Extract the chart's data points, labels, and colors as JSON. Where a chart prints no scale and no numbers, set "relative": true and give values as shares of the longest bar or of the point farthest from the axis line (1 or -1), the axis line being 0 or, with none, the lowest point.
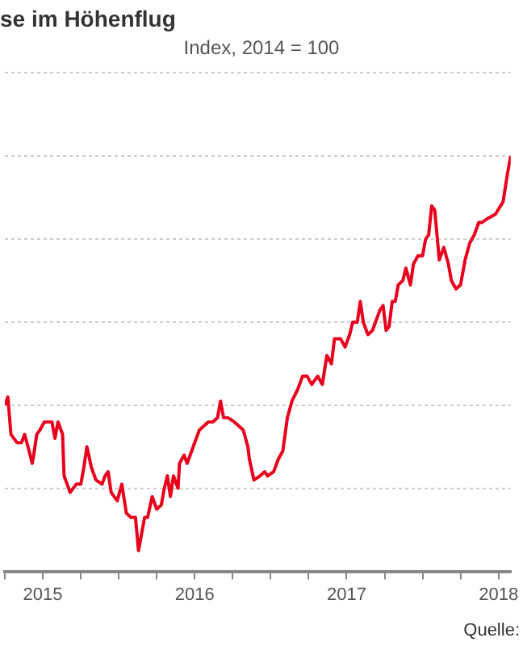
{
  "chart_data": {
    "type": "line",
    "title": "se im Höhenflug",
    "subtitle": "Index, 2014 = 100",
    "relative": true,
    "grid": "y",
    "legend": false,
    "marker": "none",
    "line_style": "solid",
    "annotations": [
      "Quelle:"
    ],
    "xlim": [
      2014.75,
      2018.08
    ],
    "xticks": [
      {
        "value": 2014.75,
        "label": null
      },
      2015,
      {
        "value": 2015.25,
        "label": null
      },
      {
        "value": 2015.5,
        "label": null
      },
      {
        "value": 2015.75,
        "label": null
      },
      2016,
      {
        "value": 2016.25,
        "label": null
      },
      {
        "value": 2016.5,
        "label": null
      },
      {
        "value": 2016.75,
        "label": null
      },
      2017,
      {
        "value": 2017.25,
        "label": null
      },
      {
        "value": 2017.5,
        "label": null
      },
      {
        "value": 2017.75,
        "label": null
      },
      2018
    ],
    "series": [
      {
        "color": "#e8001c",
        "x": [
          2014.75,
          2014.77,
          2014.79,
          2014.83,
          2014.86,
          2014.88,
          2014.91,
          2014.93,
          2014.94,
          2014.96,
          2014.98,
          2015.01,
          2015.04,
          2015.06,
          2015.08,
          2015.1,
          2015.13,
          2015.14,
          2015.18,
          2015.22,
          2015.25,
          2015.27,
          2015.29,
          2015.32,
          2015.35,
          2015.39,
          2015.41,
          2015.43,
          2015.45,
          2015.49,
          2015.52,
          2015.55,
          2015.58,
          2015.61,
          2015.63,
          2015.65,
          2015.67,
          2015.69,
          2015.72,
          2015.75,
          2015.78,
          2015.8,
          2015.82,
          2015.84,
          2015.86,
          2015.89,
          2015.9,
          2015.93,
          2015.95,
          2015.97,
          2015.99,
          2016.03,
          2016.06,
          2016.09,
          2016.12,
          2016.15,
          2016.17,
          2016.19,
          2016.22,
          2016.26,
          2016.29,
          2016.32,
          2016.35,
          2016.36,
          2016.39,
          2016.43,
          2016.46,
          2016.48,
          2016.52,
          2016.55,
          2016.58,
          2016.61,
          2016.64,
          2016.68,
          2016.71,
          2016.74,
          2016.77,
          2016.81,
          2016.84,
          2016.87,
          2016.9,
          2016.92,
          2016.96,
          2016.99,
          2017.02,
          2017.04,
          2017.07,
          2017.09,
          2017.11,
          2017.14,
          2017.17,
          2017.22,
          2017.24,
          2017.26,
          2017.28,
          2017.3,
          2017.32,
          2017.34,
          2017.37,
          2017.39,
          2017.42,
          2017.44,
          2017.47,
          2017.5,
          2017.52,
          2017.54,
          2017.56,
          2017.58,
          2017.61,
          2017.64,
          2017.67,
          2017.69,
          2017.72,
          2017.75,
          2017.78,
          2017.81,
          2017.84,
          2017.87,
          2017.89,
          2017.93,
          2017.98,
          2018.03,
          2018.06,
          2018.08
        ],
        "values": [
          0.4,
          0.42,
          0.33,
          0.31,
          0.31,
          0.33,
          0.29,
          0.26,
          0.28,
          0.33,
          0.34,
          0.36,
          0.36,
          0.36,
          0.32,
          0.36,
          0.33,
          0.23,
          0.19,
          0.21,
          0.21,
          0.25,
          0.3,
          0.25,
          0.22,
          0.21,
          0.23,
          0.24,
          0.19,
          0.17,
          0.21,
          0.14,
          0.13,
          0.13,
          0.05,
          0.09,
          0.13,
          0.13,
          0.18,
          0.15,
          0.16,
          0.2,
          0.23,
          0.18,
          0.23,
          0.2,
          0.26,
          0.28,
          0.26,
          0.28,
          0.3,
          0.34,
          0.35,
          0.36,
          0.36,
          0.37,
          0.41,
          0.37,
          0.37,
          0.36,
          0.35,
          0.34,
          0.3,
          0.27,
          0.22,
          0.23,
          0.24,
          0.23,
          0.24,
          0.27,
          0.29,
          0.37,
          0.41,
          0.44,
          0.47,
          0.47,
          0.45,
          0.47,
          0.45,
          0.52,
          0.5,
          0.56,
          0.56,
          0.54,
          0.57,
          0.6,
          0.6,
          0.65,
          0.6,
          0.57,
          0.58,
          0.63,
          0.64,
          0.58,
          0.59,
          0.65,
          0.65,
          0.69,
          0.7,
          0.73,
          0.69,
          0.74,
          0.76,
          0.76,
          0.8,
          0.81,
          0.88,
          0.87,
          0.75,
          0.78,
          0.74,
          0.7,
          0.68,
          0.69,
          0.75,
          0.79,
          0.81,
          0.84,
          0.84,
          0.85,
          0.86,
          0.89,
          0.96,
          1
        ]
      }
    ]
  }
}
